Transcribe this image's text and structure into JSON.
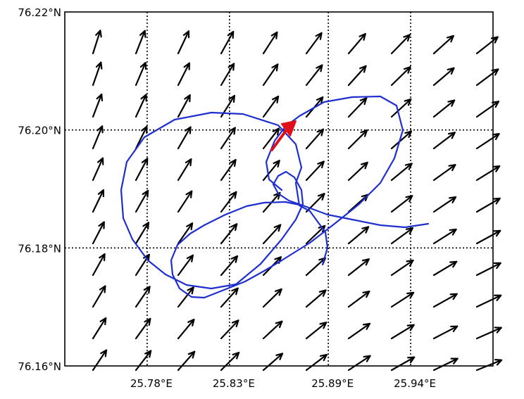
{
  "map": {
    "lat_min": 76.16,
    "lat_max": 76.22,
    "lon_min": 25.73,
    "lon_max": 25.99,
    "lat_labels": [
      {
        "value": 76.22,
        "text": "76.22°N"
      },
      {
        "value": 76.2,
        "text": "76.20°N"
      },
      {
        "value": 76.18,
        "text": "76.18°N"
      },
      {
        "value": 76.16,
        "text": "76.16°N"
      }
    ],
    "lon_labels": [
      {
        "value": 25.78,
        "text": "25.78°E"
      },
      {
        "value": 25.83,
        "text": "25.83°E"
      },
      {
        "value": 25.89,
        "text": "25.89°E"
      },
      {
        "value": 25.94,
        "text": "25.94°E"
      }
    ],
    "colors": {
      "track": "#1f2fcf",
      "heading_arrow": "#e0101a",
      "vector_arrows": "#000000",
      "grid": "#000000"
    },
    "vector_field": "wind/current arrows pointing north-northeast in the west turning to east-northeast in the south-east",
    "icons": {
      "vectors": "arrow-icon",
      "heading": "heading-arrow-icon"
    }
  }
}
